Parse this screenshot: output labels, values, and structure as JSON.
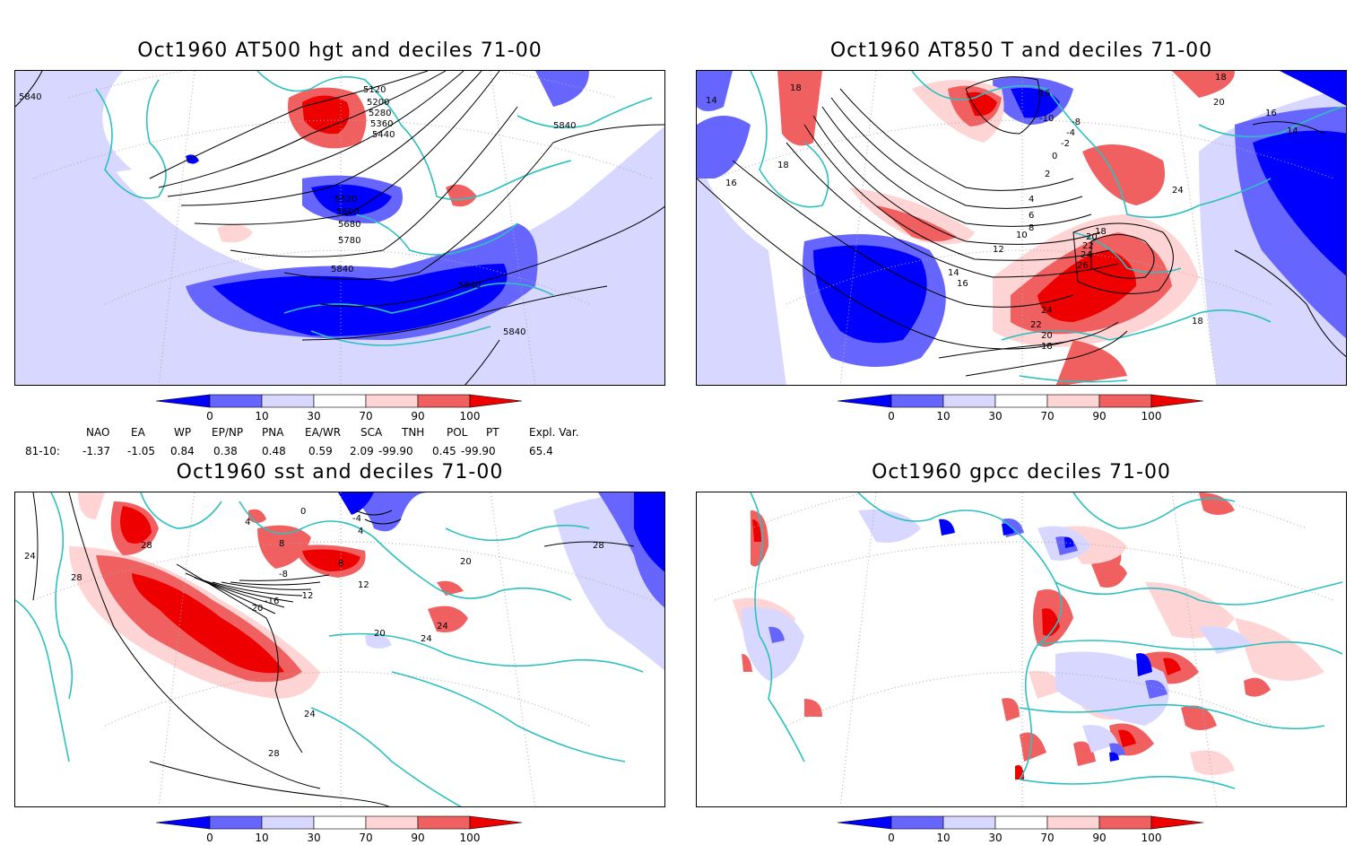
{
  "panels": [
    {
      "title": "Oct1960 AT500 hgt and deciles 71-00",
      "contour_labels": [
        "5840",
        "5120",
        "5200",
        "5280",
        "5360",
        "5440",
        "5520",
        "5600",
        "5680",
        "5780",
        "5840",
        "5840",
        "5840",
        "5840"
      ]
    },
    {
      "title": "Oct1960 AT850 T and deciles 71-00",
      "contour_labels": [
        "14",
        "18",
        "16",
        "-16",
        "-10",
        "-8",
        "-4",
        "-2",
        "0",
        "2",
        "4",
        "6",
        "8",
        "10",
        "12",
        "14",
        "16",
        "18",
        "18",
        "20",
        "22",
        "24",
        "26",
        "24",
        "22",
        "20",
        "18",
        "14",
        "16",
        "18",
        "20",
        "24",
        "18"
      ]
    },
    {
      "title": "Oct1960 sst and deciles 71-00",
      "contour_labels": [
        "24",
        "28",
        "28",
        "4",
        "0",
        "-4",
        "4",
        "8",
        "8",
        "-8",
        "-12",
        "-16",
        "-20",
        "12",
        "20",
        "20",
        "24",
        "24",
        "24",
        "28",
        "28"
      ]
    },
    {
      "title": "Oct1960 gpcc deciles 71-00",
      "contour_labels": []
    }
  ],
  "colorbar": {
    "ticks": [
      "0",
      "10",
      "30",
      "70",
      "90",
      "100"
    ],
    "colors": [
      "#0000ff",
      "#6666ff",
      "#d7d7ff",
      "#ffffff",
      "#ffd4d4",
      "#f06060",
      "#ee0000"
    ]
  },
  "indices": {
    "row_label": "81-10:",
    "headers": [
      "NAO",
      "EA",
      "WP",
      "EP/NP",
      "PNA",
      "EA/WR",
      "SCA",
      "TNH",
      "POL",
      "PT",
      "Expl. Var."
    ],
    "values": [
      "-1.37",
      "-1.05",
      "0.84",
      "0.38",
      "0.48",
      "0.59",
      "2.09",
      "-99.90",
      "0.45",
      "-99.90",
      "65.4"
    ]
  },
  "colors": {
    "coastline": "#2ec0c0",
    "contour": "#000000",
    "grid": "#aaaaaa"
  }
}
